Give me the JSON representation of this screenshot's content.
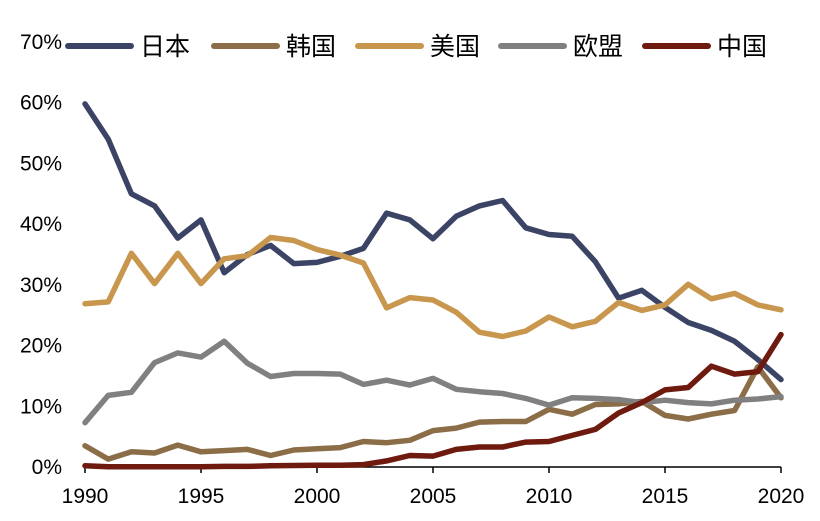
{
  "chart_data": {
    "type": "line",
    "title": "",
    "xlabel": "",
    "ylabel": "",
    "x": [
      1990,
      1991,
      1992,
      1993,
      1994,
      1995,
      1996,
      1997,
      1998,
      1999,
      2000,
      2001,
      2002,
      2003,
      2004,
      2005,
      2006,
      2007,
      2008,
      2009,
      2010,
      2011,
      2012,
      2013,
      2014,
      2015,
      2016,
      2017,
      2018,
      2019,
      2020
    ],
    "xlim": [
      1990,
      2020
    ],
    "ylim": [
      0,
      70
    ],
    "x_ticks": [
      1990,
      1995,
      2000,
      2005,
      2010,
      2015,
      2020
    ],
    "x_tick_labels": [
      "1990",
      "1995",
      "2000",
      "2005",
      "2010",
      "2015",
      "2020"
    ],
    "y_ticks": [
      0,
      10,
      20,
      30,
      40,
      50,
      60,
      70
    ],
    "y_tick_labels": [
      "0%",
      "10%",
      "20%",
      "30%",
      "40%",
      "50%",
      "60%",
      "70%"
    ],
    "grid": false,
    "legend_position": "top",
    "series": [
      {
        "name": "日本",
        "color": "#3b4465",
        "values": [
          59.8,
          54,
          45,
          43,
          37.7,
          40.7,
          32,
          35,
          36.5,
          33.5,
          33.7,
          34.7,
          36,
          41.8,
          40.7,
          37.6,
          41.3,
          43,
          43.9,
          39.4,
          38.3,
          38,
          33.8,
          27.8,
          29.1,
          26.3,
          23.8,
          22.5,
          20.7,
          17.7,
          14.4
        ]
      },
      {
        "name": "韩国",
        "color": "#8b6d47",
        "values": [
          3.5,
          1.3,
          2.5,
          2.3,
          3.6,
          2.5,
          2.7,
          2.9,
          1.9,
          2.8,
          3,
          3.2,
          4.2,
          4,
          4.4,
          6,
          6.4,
          7.4,
          7.5,
          7.5,
          9.5,
          8.7,
          10.3,
          10.4,
          10.8,
          8.5,
          7.9,
          8.7,
          9.3,
          16.5,
          11.4
        ]
      },
      {
        "name": "美国",
        "color": "#c9964e",
        "values": [
          26.9,
          27.2,
          35.2,
          30.2,
          35.2,
          30.2,
          34.3,
          34.8,
          37.8,
          37.3,
          35.8,
          34.9,
          33.6,
          26.2,
          27.9,
          27.5,
          25.5,
          22.2,
          21.5,
          22.4,
          24.7,
          23.1,
          24,
          27.1,
          25.8,
          26.7,
          30.1,
          27.7,
          28.6,
          26.7,
          25.9
        ]
      },
      {
        "name": "欧盟",
        "color": "#808080",
        "values": [
          7.3,
          11.8,
          12.3,
          17.2,
          18.8,
          18.1,
          20.7,
          17.1,
          14.9,
          15.4,
          15.4,
          15.3,
          13.6,
          14.3,
          13.5,
          14.6,
          12.8,
          12.4,
          12.1,
          11.3,
          10.2,
          11.4,
          11.3,
          11.1,
          10.6,
          11,
          10.6,
          10.4,
          11,
          11.2,
          11.6
        ]
      },
      {
        "name": "中国",
        "color": "#6e1a0f",
        "values": [
          0.2,
          0.05,
          0.05,
          0.05,
          0.05,
          0.05,
          0.1,
          0.1,
          0.2,
          0.25,
          0.3,
          0.3,
          0.4,
          1,
          1.9,
          1.8,
          2.9,
          3.3,
          3.3,
          4.1,
          4.2,
          5.2,
          6.2,
          8.9,
          10.6,
          12.7,
          13.1,
          16.6,
          15.3,
          15.7,
          21.8
        ]
      }
    ]
  }
}
